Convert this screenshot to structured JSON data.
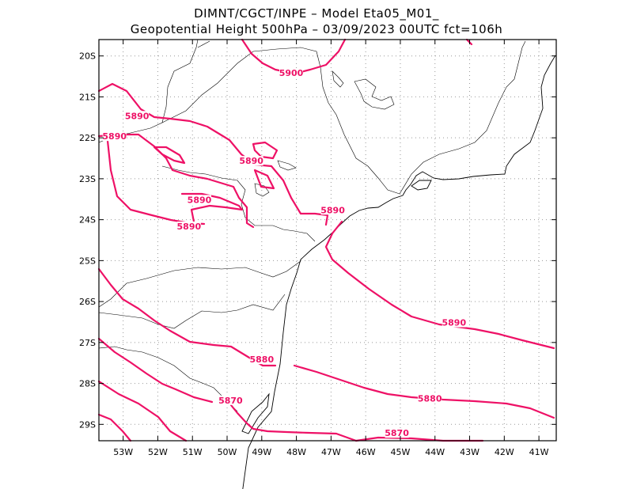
{
  "title_line1": "DIMNT/CGCT/INPE –   Model Eta05_M01_",
  "title_line2": "Geopotential Height 500hPa –   03/09/2023 00UTC fct=106h",
  "colors": {
    "contour": "#ee1166",
    "frame": "#000000",
    "grid": "#999999"
  },
  "map": {
    "lon_range": [
      -53.7,
      -40.5
    ],
    "lat_range": [
      -29.4,
      -19.6
    ],
    "lon_ticks": [
      {
        "value": -53,
        "label": "53W"
      },
      {
        "value": -52,
        "label": "52W"
      },
      {
        "value": -51,
        "label": "51W"
      },
      {
        "value": -50,
        "label": "50W"
      },
      {
        "value": -49,
        "label": "49W"
      },
      {
        "value": -48,
        "label": "48W"
      },
      {
        "value": -47,
        "label": "47W"
      },
      {
        "value": -46,
        "label": "46W"
      },
      {
        "value": -45,
        "label": "45W"
      },
      {
        "value": -44,
        "label": "44W"
      },
      {
        "value": -43,
        "label": "43W"
      },
      {
        "value": -42,
        "label": "42W"
      },
      {
        "value": -41,
        "label": "41W"
      }
    ],
    "lat_ticks": [
      {
        "value": -20,
        "label": "20S"
      },
      {
        "value": -21,
        "label": "21S"
      },
      {
        "value": -22,
        "label": "22S"
      },
      {
        "value": -23,
        "label": "23S"
      },
      {
        "value": -24,
        "label": "24S"
      },
      {
        "value": -25,
        "label": "25S"
      },
      {
        "value": -26,
        "label": "26S"
      },
      {
        "value": -27,
        "label": "27S"
      },
      {
        "value": -28,
        "label": "28S"
      },
      {
        "value": -29,
        "label": "29S"
      }
    ],
    "contour_labels": [
      {
        "text": "5900",
        "lon": -48.15,
        "lat": -20.45
      },
      {
        "text": "5890",
        "lon": -52.6,
        "lat": -21.5
      },
      {
        "text": "5890",
        "lon": -53.25,
        "lat": -22.0
      },
      {
        "text": "5890",
        "lon": -49.3,
        "lat": -22.6
      },
      {
        "text": "5890",
        "lon": -50.8,
        "lat": -23.55
      },
      {
        "text": "5890",
        "lon": -51.1,
        "lat": -24.2
      },
      {
        "text": "5890",
        "lon": -46.95,
        "lat": -23.8
      },
      {
        "text": "5890",
        "lon": -43.45,
        "lat": -26.55
      },
      {
        "text": "5880",
        "lon": -49.0,
        "lat": -27.45
      },
      {
        "text": "5880",
        "lon": -44.15,
        "lat": -28.4
      },
      {
        "text": "5870",
        "lon": -49.9,
        "lat": -28.45
      },
      {
        "text": "5870",
        "lon": -45.1,
        "lat": -29.25
      }
    ]
  }
}
